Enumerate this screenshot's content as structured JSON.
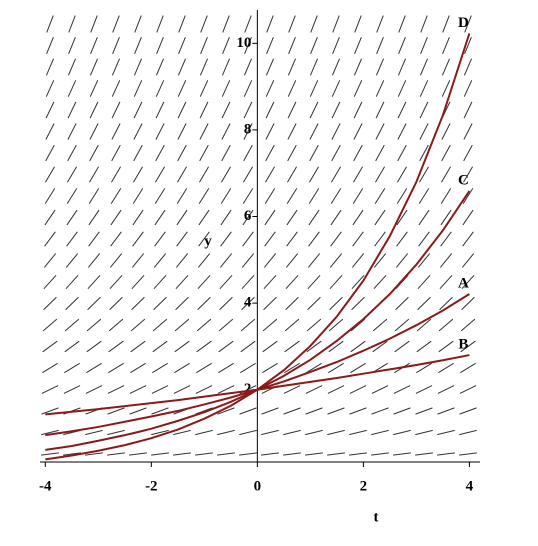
{
  "chart_data": {
    "type": "line",
    "x_label": "t",
    "y_label": "y",
    "x": [
      -4,
      -3.5,
      -3,
      -2.5,
      -2,
      -1.5,
      -1,
      -0.5,
      0,
      0.5,
      1,
      1.5,
      2,
      2.5,
      3,
      3.5,
      4
    ],
    "series": [
      {
        "name": "A",
        "color": "#8b1a1a",
        "values": [
          0.95,
          1.04,
          1.14,
          1.26,
          1.38,
          1.51,
          1.66,
          1.82,
          2,
          2.19,
          2.41,
          2.64,
          2.9,
          3.18,
          3.49,
          3.83,
          4.21
        ]
      },
      {
        "name": "B",
        "color": "#8b1a1a",
        "values": [
          1.43,
          1.49,
          1.55,
          1.62,
          1.69,
          1.76,
          1.84,
          1.92,
          2,
          2.09,
          2.18,
          2.27,
          2.37,
          2.47,
          2.57,
          2.68,
          2.8
        ]
      },
      {
        "name": "C",
        "color": "#8b1a1a",
        "values": [
          0.61,
          0.7,
          0.82,
          0.95,
          1.1,
          1.28,
          1.48,
          1.72,
          2,
          2.32,
          2.69,
          3.13,
          3.63,
          4.21,
          4.89,
          5.68,
          6.59
        ]
      },
      {
        "name": "D",
        "color": "#8b1a1a",
        "values": [
          0.39,
          0.48,
          0.59,
          0.72,
          0.88,
          1.08,
          1.33,
          1.63,
          2,
          2.45,
          3.01,
          3.69,
          4.52,
          5.55,
          6.8,
          8.34,
          10.23
        ]
      }
    ],
    "xlim": [
      -4.1,
      4.2
    ],
    "ylim": [
      0.33,
      10.77
    ],
    "xticks": [
      -4,
      -2,
      0,
      2,
      4
    ],
    "yticks": [
      2,
      4,
      6,
      8,
      10
    ]
  }
}
